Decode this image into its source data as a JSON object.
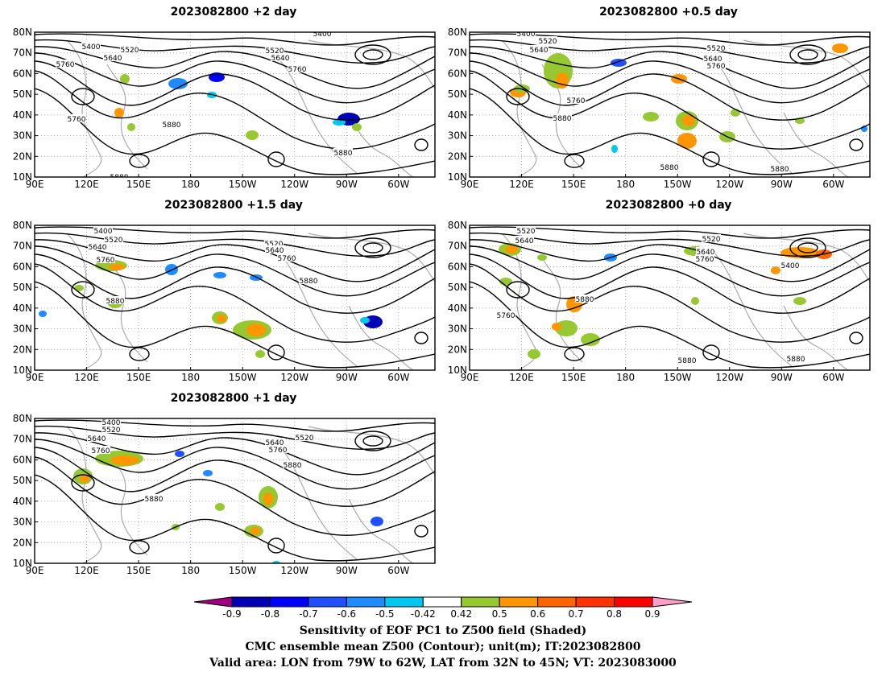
{
  "panels": [
    {
      "id": "p2",
      "title": "2023082800 +2 day"
    },
    {
      "id": "p05",
      "title": "2023082800 +0.5 day"
    },
    {
      "id": "p15",
      "title": "2023082800 +1.5 day"
    },
    {
      "id": "p0",
      "title": "2023082800 +0 day"
    },
    {
      "id": "p1",
      "title": "2023082800 +1 day"
    }
  ],
  "axes": {
    "lon_ticks": [
      "90E",
      "120E",
      "150E",
      "180",
      "150W",
      "120W",
      "90W",
      "60W"
    ],
    "lat_ticks": [
      "80N",
      "70N",
      "60N",
      "50N",
      "40N",
      "30N",
      "20N",
      "10N"
    ]
  },
  "contour_labels": {
    "p2": [
      "5400",
      "5520",
      "5640",
      "5760",
      "5520",
      "5640",
      "5760",
      "5760",
      "5880",
      "5400",
      "5880",
      "5880"
    ],
    "p05": [
      "5400",
      "5520",
      "5640",
      "5520",
      "5640",
      "5760",
      "5760",
      "5880",
      "5880",
      "5880"
    ],
    "p15": [
      "5400",
      "5520",
      "5640",
      "5760",
      "5520",
      "5640",
      "5760",
      "5880",
      "5880"
    ],
    "p0": [
      "5520",
      "5640",
      "5520",
      "5640",
      "5760",
      "5400",
      "5760",
      "5880",
      "5880",
      "5880"
    ],
    "p1": [
      "5400",
      "5520",
      "5640",
      "5760",
      "5640",
      "5760",
      "5520",
      "5880",
      "5880"
    ]
  },
  "colorbar": {
    "colors": [
      "#a0007f",
      "#0000b4",
      "#0000ff",
      "#1e50ff",
      "#1e8cff",
      "#00c8f0",
      "#ffffff",
      "#96c832",
      "#ff9600",
      "#ff6400",
      "#ff3200",
      "#ff0000",
      "#ff9ec8"
    ],
    "ticks": [
      "-0.9",
      "-0.8",
      "-0.7",
      "-0.6",
      "-0.5",
      "-0.42",
      "0.42",
      "0.5",
      "0.6",
      "0.7",
      "0.8",
      "0.9"
    ]
  },
  "caption": {
    "line1": "Sensitivity of EOF PC1 to Z500 field (Shaded)",
    "line2": "CMC ensemble mean Z500 (Contour); unit(m); IT:2023082800",
    "line3": "Valid area: LON from 79W to 62W, LAT from 32N to 45N; VT: 2023083000"
  }
}
